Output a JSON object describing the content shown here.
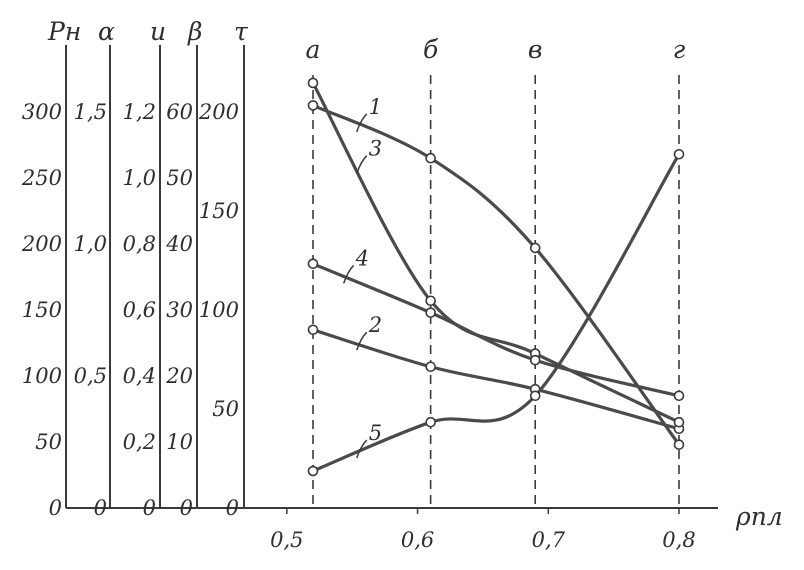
{
  "chart_data": {
    "type": "line",
    "title": "",
    "xlabel": "ρпл",
    "x_ticks": [
      "0,5",
      "0,6",
      "0,7",
      "0,8"
    ],
    "xlim": [
      0.48,
      0.825
    ],
    "scales": [
      {
        "name": "Рн",
        "ticks": [
          "0",
          "50",
          "100",
          "150",
          "200",
          "250",
          "300"
        ],
        "range": [
          0,
          300
        ]
      },
      {
        "name": "α",
        "ticks": [
          "0",
          "0,5",
          "1,0",
          "1,5"
        ],
        "range": [
          0,
          1.5
        ]
      },
      {
        "name": "u",
        "ticks": [
          "0",
          "0,2",
          "0,4",
          "0,6",
          "0,8",
          "1,0",
          "1,2"
        ],
        "range": [
          0,
          1.2
        ]
      },
      {
        "name": "β",
        "ticks": [
          "0",
          "10",
          "20",
          "30",
          "40",
          "50",
          "60"
        ],
        "range": [
          0,
          60
        ]
      },
      {
        "name": "τ",
        "ticks": [
          "0",
          "50",
          "100",
          "150",
          "200"
        ],
        "range": [
          0,
          200
        ]
      }
    ],
    "verticals": [
      {
        "label": "а",
        "x": 0.52
      },
      {
        "label": "б",
        "x": 0.61
      },
      {
        "label": "в",
        "x": 0.69
      },
      {
        "label": "г",
        "x": 0.8
      }
    ],
    "series": [
      {
        "name": "1",
        "scale": "Рн",
        "x": [
          0.52,
          0.61,
          0.69,
          0.8
        ],
        "y": [
          305,
          265,
          197,
          48
        ],
        "labelled_at": 0.555
      },
      {
        "name": "2",
        "scale": "Рн",
        "x": [
          0.52,
          0.61,
          0.69,
          0.8
        ],
        "y": [
          135,
          107,
          90,
          60
        ],
        "labelled_at": 0.555
      },
      {
        "name": "3",
        "scale": "Рн",
        "x": [
          0.52,
          0.61,
          0.69,
          0.8
        ],
        "y": [
          322,
          157,
          117,
          65
        ],
        "labelled_at": 0.555
      },
      {
        "name": "4",
        "scale": "Рн",
        "x": [
          0.52,
          0.61,
          0.69,
          0.8
        ],
        "y": [
          185,
          148,
          112,
          85
        ],
        "labelled_at": 0.545
      },
      {
        "name": "5",
        "scale": "Рн",
        "x": [
          0.52,
          0.61,
          0.69,
          0.8
        ],
        "y": [
          28,
          65,
          85,
          268
        ],
        "labelled_at": 0.555
      }
    ]
  }
}
